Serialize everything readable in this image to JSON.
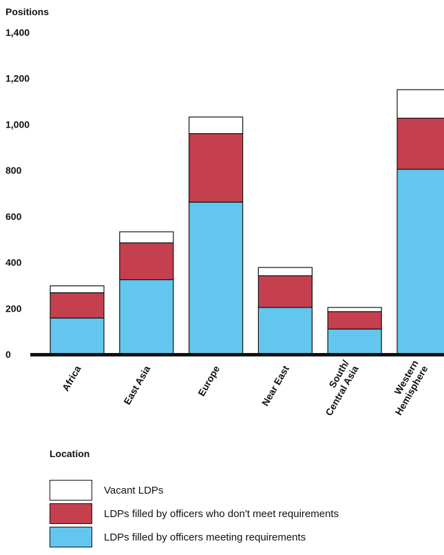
{
  "chart_data": {
    "type": "bar",
    "stacked": true,
    "ylabel": "Positions",
    "xlabel": "Location",
    "ylim": [
      0,
      1400
    ],
    "yticks": [
      "0",
      "200",
      "400",
      "600",
      "800",
      "1,000",
      "1,200",
      "1,400"
    ],
    "ytick_values": [
      0,
      200,
      400,
      600,
      800,
      1000,
      1200,
      1400
    ],
    "categories": [
      "Africa",
      "East Asia",
      "Europe",
      "Near East",
      "South/ Central Asia",
      "Western Hemisphere"
    ],
    "category_lines": [
      [
        "Africa"
      ],
      [
        "East Asia"
      ],
      [
        "Europe"
      ],
      [
        "Near East"
      ],
      [
        "South/",
        "Central Asia"
      ],
      [
        "Western",
        "Hemisphere"
      ]
    ],
    "series": [
      {
        "name": "LDPs filled by officers meeting requirements",
        "color": "#62c6ee",
        "values": [
          158,
          325,
          662,
          204,
          110,
          805
        ]
      },
      {
        "name": "LDPs filled by officers who don't meet requirements",
        "color": "#c5404e",
        "values": [
          110,
          160,
          298,
          138,
          76,
          222
        ]
      },
      {
        "name": "Vacant LDPs",
        "color": "#ffffff",
        "values": [
          30,
          48,
          72,
          36,
          18,
          124
        ]
      }
    ],
    "legend_order": [
      2,
      1,
      0
    ],
    "legend_placement": "bottom",
    "grid": false
  }
}
